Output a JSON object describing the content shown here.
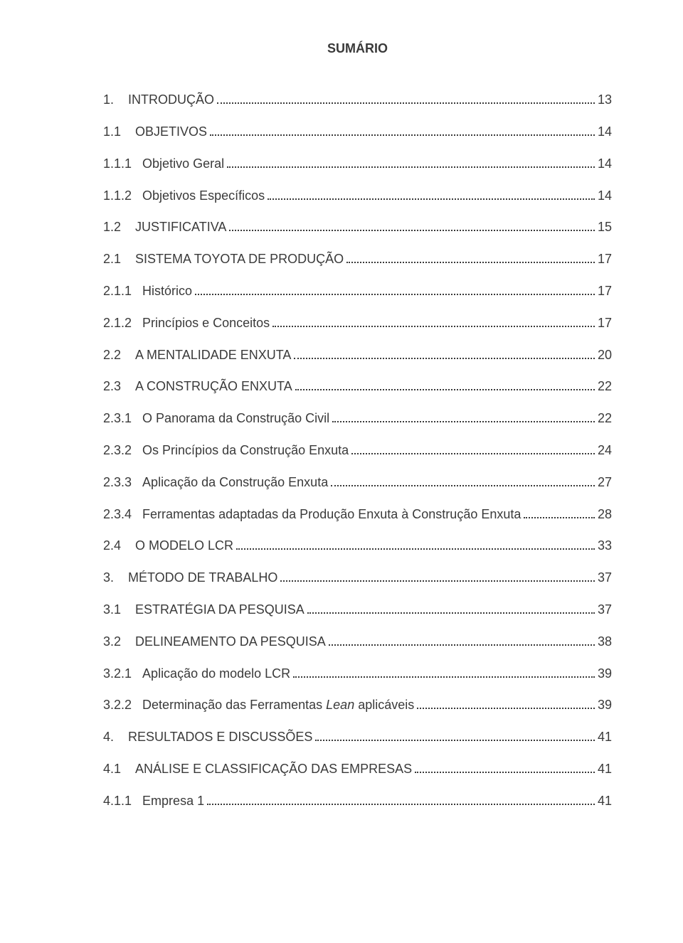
{
  "title": "SUMÁRIO",
  "text_color": "#3a3a3a",
  "background_color": "#ffffff",
  "font_family": "Arial",
  "font_size_pt": 12,
  "entries": [
    {
      "num": "1.",
      "gap": "    ",
      "label": "INTRODUÇÃO",
      "page": "13",
      "level": 1
    },
    {
      "num": "1.1",
      "gap": "    ",
      "label": "OBJETIVOS",
      "page": "14",
      "level": 2
    },
    {
      "num": "1.1.1",
      "gap": "   ",
      "label": "Objetivo Geral",
      "page": "14",
      "level": 3
    },
    {
      "num": "1.1.2",
      "gap": "   ",
      "label": "Objetivos Específicos",
      "page": "14",
      "level": 3
    },
    {
      "num": "1.2",
      "gap": "    ",
      "label": "JUSTIFICATIVA",
      "page": "15",
      "level": 2
    },
    {
      "num": "2.1",
      "gap": "    ",
      "label": "SISTEMA TOYOTA DE PRODUÇÃO",
      "page": "17",
      "level": 2
    },
    {
      "num": "2.1.1",
      "gap": "   ",
      "label": "Histórico",
      "page": "17",
      "level": 3
    },
    {
      "num": "2.1.2",
      "gap": "   ",
      "label": "Princípios e Conceitos",
      "page": "17",
      "level": 3
    },
    {
      "num": "2.2",
      "gap": "    ",
      "label": "A MENTALIDADE ENXUTA",
      "page": "20",
      "level": 2
    },
    {
      "num": "2.3",
      "gap": "    ",
      "label": "A CONSTRUÇÃO ENXUTA",
      "page": "22",
      "level": 2
    },
    {
      "num": "2.3.1",
      "gap": "   ",
      "label": "O Panorama da Construção Civil",
      "page": "22",
      "level": 3
    },
    {
      "num": "2.3.2",
      "gap": "   ",
      "label": "Os Princípios da Construção Enxuta",
      "page": "24",
      "level": 3
    },
    {
      "num": "2.3.3",
      "gap": "   ",
      "label": "Aplicação da Construção Enxuta",
      "page": "27",
      "level": 3
    },
    {
      "num": "2.3.4",
      "gap": "   ",
      "label": "Ferramentas adaptadas da Produção Enxuta à Construção Enxuta",
      "page": "28",
      "level": 3
    },
    {
      "num": "2.4",
      "gap": "    ",
      "label": "O MODELO LCR",
      "page": "33",
      "level": 2
    },
    {
      "num": "3.",
      "gap": "    ",
      "label": "MÉTODO DE TRABALHO",
      "page": "37",
      "level": 1
    },
    {
      "num": "3.1",
      "gap": "    ",
      "label": "ESTRATÉGIA DA PESQUISA",
      "page": "37",
      "level": 2
    },
    {
      "num": "3.2",
      "gap": "    ",
      "label": "DELINEAMENTO DA PESQUISA",
      "page": "38",
      "level": 2
    },
    {
      "num": "3.2.1",
      "gap": "   ",
      "label": "Aplicação do modelo LCR",
      "page": "39",
      "level": 3
    },
    {
      "num": "3.2.2",
      "gap": "   ",
      "label_pre": "Determinação das Ferramentas ",
      "label_italic": "Lean",
      "label_post": " aplicáveis",
      "page": "39",
      "level": 3
    },
    {
      "num": "4.",
      "gap": "    ",
      "label": "RESULTADOS E DISCUSSÕES",
      "page": "41",
      "level": 1
    },
    {
      "num": "4.1",
      "gap": "    ",
      "label": "ANÁLISE E CLASSIFICAÇÃO DAS EMPRESAS",
      "page": "41",
      "level": 2
    },
    {
      "num": "4.1.1",
      "gap": "   ",
      "label": "Empresa 1",
      "page": "41",
      "level": 3
    }
  ]
}
